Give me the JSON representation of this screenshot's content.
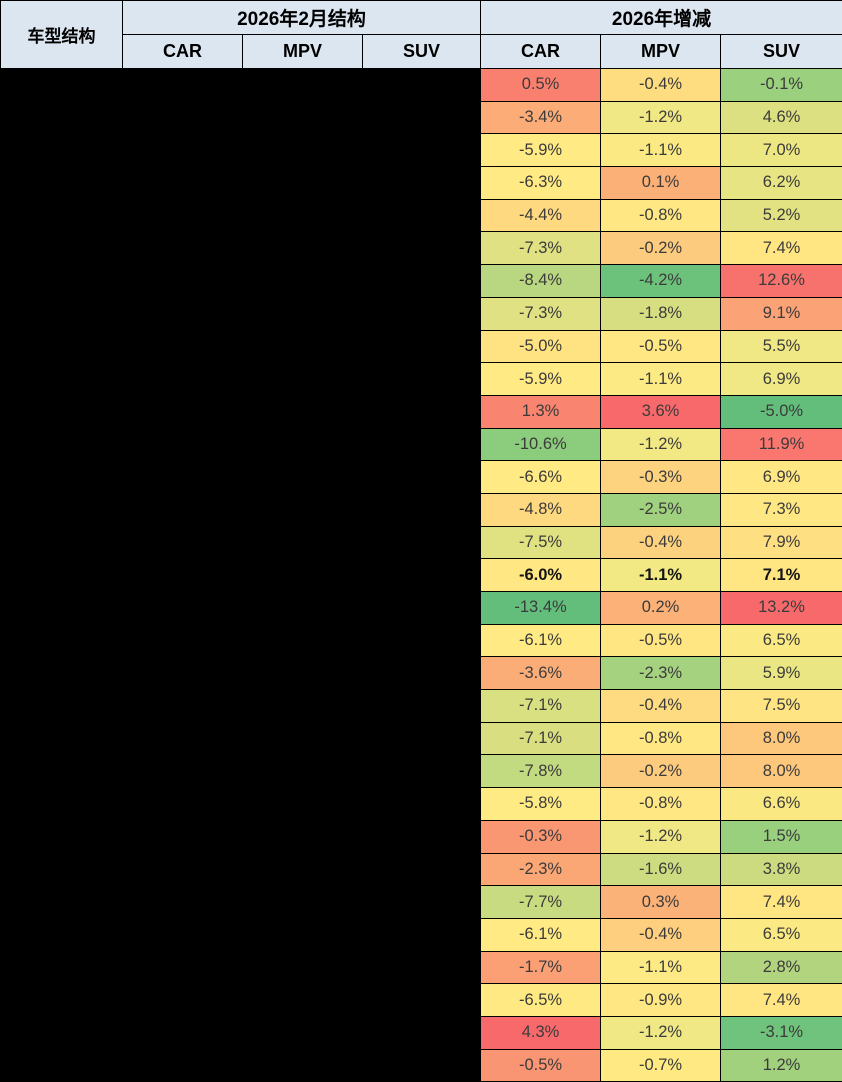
{
  "table": {
    "corner_header": "车型结构",
    "group_headers": [
      {
        "label": "2026年2月结构",
        "columns": [
          "CAR",
          "MPV",
          "SUV"
        ]
      },
      {
        "label": "2026年增减",
        "columns": [
          "CAR",
          "MPV",
          "SUV"
        ]
      }
    ],
    "styles": {
      "header_bg": "#dce6f1",
      "border_color": "#000000",
      "text_color": "#3b3b3b",
      "redacted_color": "#000000"
    },
    "rows": [
      {
        "cells": [
          {
            "v": "0.5%",
            "bg": "#F9806F"
          },
          {
            "v": "-0.4%",
            "bg": "#FEDC80"
          },
          {
            "v": "-0.1%",
            "bg": "#9BD07E"
          }
        ]
      },
      {
        "cells": [
          {
            "v": "-3.4%",
            "bg": "#FCAC76"
          },
          {
            "v": "-1.2%",
            "bg": "#EFE884"
          },
          {
            "v": "4.6%",
            "bg": "#DCE081"
          }
        ]
      },
      {
        "cells": [
          {
            "v": "-5.9%",
            "bg": "#FFEA84"
          },
          {
            "v": "-1.1%",
            "bg": "#FBEA84"
          },
          {
            "v": "7.0%",
            "bg": "#EDE783"
          }
        ]
      },
      {
        "cells": [
          {
            "v": "-6.3%",
            "bg": "#FFEA84"
          },
          {
            "v": "0.1%",
            "bg": "#FBB077"
          },
          {
            "v": "6.2%",
            "bg": "#E7E583"
          }
        ]
      },
      {
        "cells": [
          {
            "v": "-4.4%",
            "bg": "#FED980"
          },
          {
            "v": "-0.8%",
            "bg": "#FFE884"
          },
          {
            "v": "5.2%",
            "bg": "#E2E282"
          }
        ]
      },
      {
        "cells": [
          {
            "v": "-7.3%",
            "bg": "#DFE182"
          },
          {
            "v": "-0.2%",
            "bg": "#FDCB7D"
          },
          {
            "v": "7.4%",
            "bg": "#FFE683"
          }
        ]
      },
      {
        "cells": [
          {
            "v": "-8.4%",
            "bg": "#B9D780"
          },
          {
            "v": "-4.2%",
            "bg": "#6CC27B"
          },
          {
            "v": "12.6%",
            "bg": "#F8726D"
          }
        ]
      },
      {
        "cells": [
          {
            "v": "-7.3%",
            "bg": "#DFE182"
          },
          {
            "v": "-1.8%",
            "bg": "#D6DE81"
          },
          {
            "v": "9.1%",
            "bg": "#FBA376"
          }
        ]
      },
      {
        "cells": [
          {
            "v": "-5.0%",
            "bg": "#FFE382"
          },
          {
            "v": "-0.5%",
            "bg": "#FFE884"
          },
          {
            "v": "5.5%",
            "bg": "#F0E884"
          }
        ]
      },
      {
        "cells": [
          {
            "v": "-5.9%",
            "bg": "#FFEA84"
          },
          {
            "v": "-1.1%",
            "bg": "#FCEA84"
          },
          {
            "v": "6.9%",
            "bg": "#EFE884"
          }
        ]
      },
      {
        "cells": [
          {
            "v": "1.3%",
            "bg": "#F9846F"
          },
          {
            "v": "3.6%",
            "bg": "#F8696B"
          },
          {
            "v": "-5.0%",
            "bg": "#63BE7B"
          }
        ]
      },
      {
        "cells": [
          {
            "v": "-10.6%",
            "bg": "#8CCC7D"
          },
          {
            "v": "-1.2%",
            "bg": "#F3E984"
          },
          {
            "v": "11.9%",
            "bg": "#F9776E"
          }
        ]
      },
      {
        "cells": [
          {
            "v": "-6.6%",
            "bg": "#FFEA84"
          },
          {
            "v": "-0.3%",
            "bg": "#FDD37F"
          },
          {
            "v": "6.9%",
            "bg": "#FFE883"
          }
        ]
      },
      {
        "cells": [
          {
            "v": "-4.8%",
            "bg": "#FED980"
          },
          {
            "v": "-2.5%",
            "bg": "#A0D17E"
          },
          {
            "v": "7.3%",
            "bg": "#FFE783"
          }
        ]
      },
      {
        "cells": [
          {
            "v": "-7.5%",
            "bg": "#E0E282"
          },
          {
            "v": "-0.4%",
            "bg": "#FDD27F"
          },
          {
            "v": "7.9%",
            "bg": "#FEDF81"
          }
        ]
      },
      {
        "bold": true,
        "cells": [
          {
            "v": "-6.0%",
            "bg": "#FFE883"
          },
          {
            "v": "-1.1%",
            "bg": "#F2E984"
          },
          {
            "v": "7.1%",
            "bg": "#FFE683"
          }
        ]
      },
      {
        "cells": [
          {
            "v": "-13.4%",
            "bg": "#63BE7B"
          },
          {
            "v": "0.2%",
            "bg": "#FBB177"
          },
          {
            "v": "13.2%",
            "bg": "#F8696B"
          }
        ]
      },
      {
        "cells": [
          {
            "v": "-6.1%",
            "bg": "#FFEA84"
          },
          {
            "v": "-0.5%",
            "bg": "#FFE683"
          },
          {
            "v": "6.5%",
            "bg": "#FBE983"
          }
        ]
      },
      {
        "cells": [
          {
            "v": "-3.6%",
            "bg": "#FBAD77"
          },
          {
            "v": "-2.3%",
            "bg": "#A5D27F"
          },
          {
            "v": "5.9%",
            "bg": "#E9E683"
          }
        ]
      },
      {
        "cells": [
          {
            "v": "-7.1%",
            "bg": "#D9E081"
          },
          {
            "v": "-0.4%",
            "bg": "#FEDA80"
          },
          {
            "v": "7.5%",
            "bg": "#FFE483"
          }
        ]
      },
      {
        "cells": [
          {
            "v": "-7.1%",
            "bg": "#D9DF81"
          },
          {
            "v": "-0.8%",
            "bg": "#FFE884"
          },
          {
            "v": "8.0%",
            "bg": "#FDC77C"
          }
        ]
      },
      {
        "cells": [
          {
            "v": "-7.8%",
            "bg": "#C2DA80"
          },
          {
            "v": "-0.2%",
            "bg": "#FDCB7D"
          },
          {
            "v": "8.0%",
            "bg": "#FDC77C"
          }
        ]
      },
      {
        "cells": [
          {
            "v": "-5.8%",
            "bg": "#FFEB84"
          },
          {
            "v": "-0.8%",
            "bg": "#FFE884"
          },
          {
            "v": "6.6%",
            "bg": "#FAE983"
          }
        ]
      },
      {
        "cells": [
          {
            "v": "-0.3%",
            "bg": "#FA9773"
          },
          {
            "v": "-1.2%",
            "bg": "#F0E884"
          },
          {
            "v": "1.5%",
            "bg": "#98D07E"
          }
        ]
      },
      {
        "cells": [
          {
            "v": "-2.3%",
            "bg": "#FBA675"
          },
          {
            "v": "-1.6%",
            "bg": "#CEDC81"
          },
          {
            "v": "3.8%",
            "bg": "#CCDB80"
          }
        ]
      },
      {
        "cells": [
          {
            "v": "-7.7%",
            "bg": "#C9DB80"
          },
          {
            "v": "0.3%",
            "bg": "#FBB278"
          },
          {
            "v": "7.4%",
            "bg": "#FFE683"
          }
        ]
      },
      {
        "cells": [
          {
            "v": "-6.1%",
            "bg": "#FFEA84"
          },
          {
            "v": "-0.4%",
            "bg": "#FDCF7E"
          },
          {
            "v": "6.5%",
            "bg": "#FBE983"
          }
        ]
      },
      {
        "cells": [
          {
            "v": "-1.7%",
            "bg": "#FB9F74"
          },
          {
            "v": "-1.1%",
            "bg": "#FDEA84"
          },
          {
            "v": "2.8%",
            "bg": "#B2D47F"
          }
        ]
      },
      {
        "cells": [
          {
            "v": "-6.5%",
            "bg": "#FFE983"
          },
          {
            "v": "-0.9%",
            "bg": "#FFE884"
          },
          {
            "v": "7.4%",
            "bg": "#FFE683"
          }
        ]
      },
      {
        "cells": [
          {
            "v": "4.3%",
            "bg": "#F8696B"
          },
          {
            "v": "-1.2%",
            "bg": "#F0E884"
          },
          {
            "v": "-3.1%",
            "bg": "#70C37C"
          }
        ]
      },
      {
        "cells": [
          {
            "v": "-0.5%",
            "bg": "#FA9573"
          },
          {
            "v": "-0.7%",
            "bg": "#FFE983"
          },
          {
            "v": "1.2%",
            "bg": "#A2D17E"
          }
        ]
      }
    ]
  }
}
